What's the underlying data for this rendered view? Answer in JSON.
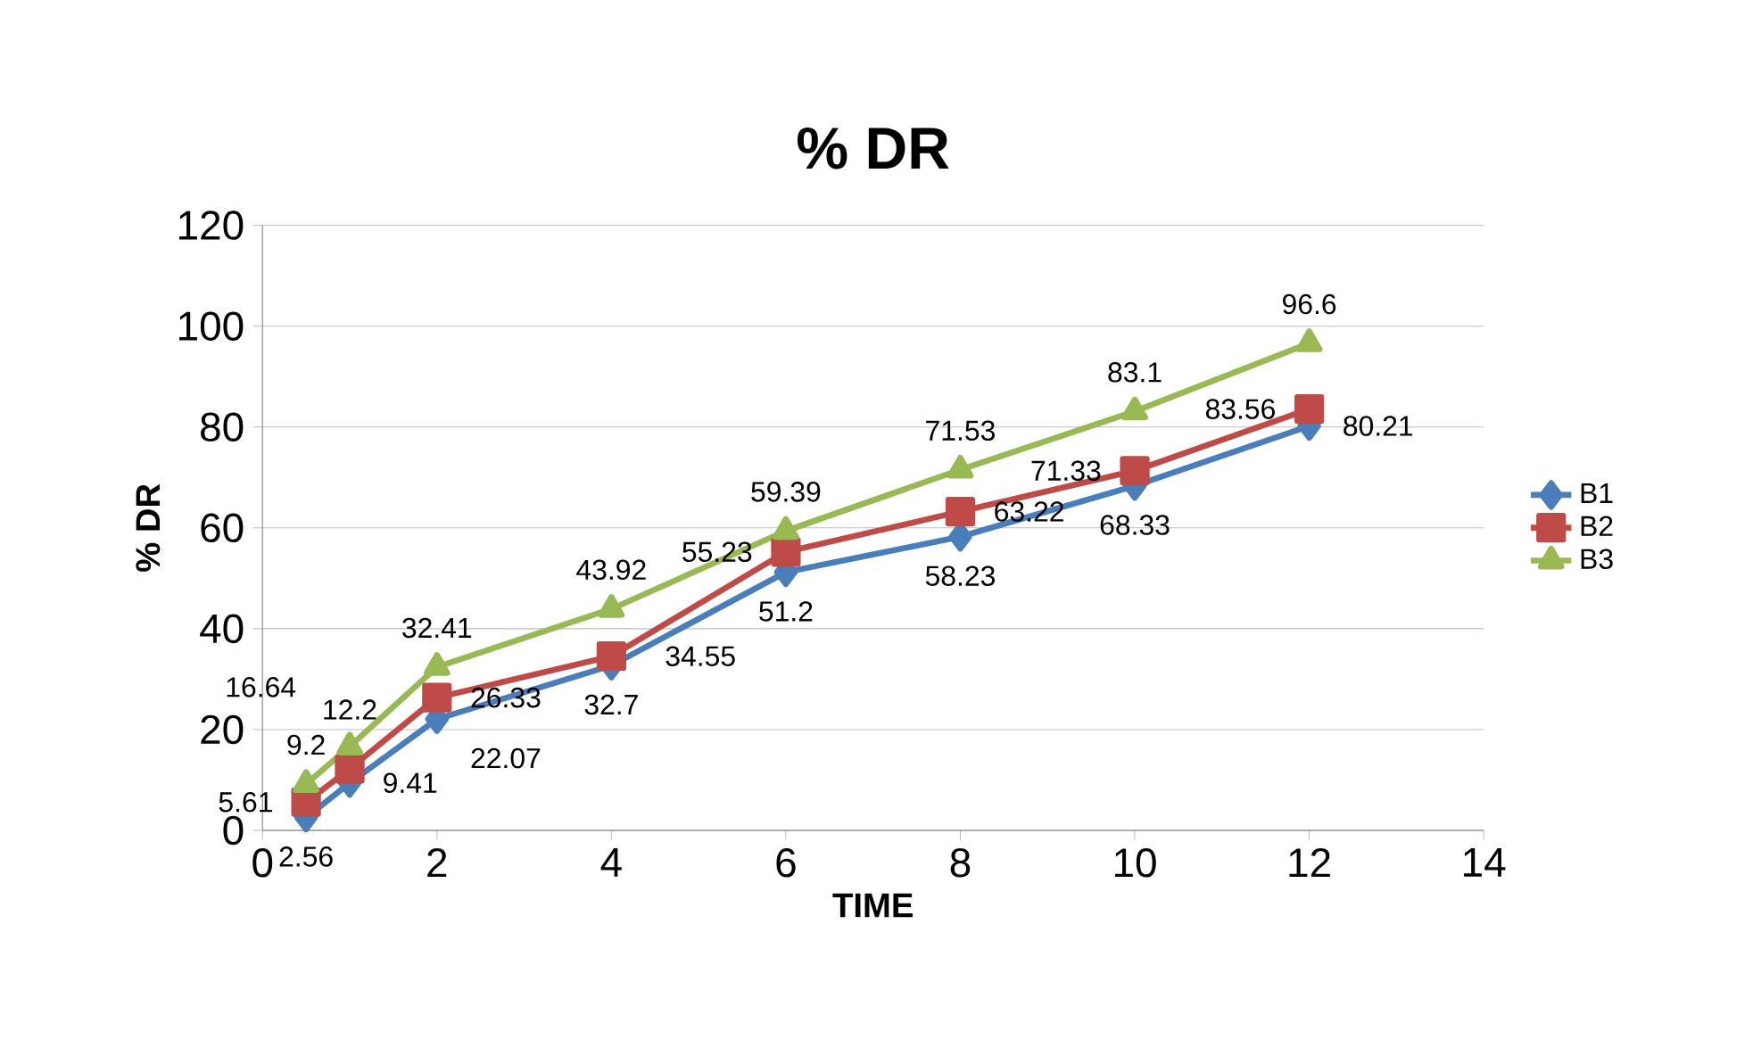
{
  "chart_data": {
    "type": "line",
    "title": "% DR",
    "xlabel": "TIME",
    "ylabel": "% DR",
    "x": [
      0.5,
      1,
      2,
      4,
      6,
      8,
      10,
      12
    ],
    "xlim": [
      0,
      14
    ],
    "xticks": [
      0,
      2,
      4,
      6,
      8,
      10,
      12,
      14
    ],
    "ylim": [
      0,
      120
    ],
    "yticks": [
      0,
      20,
      40,
      60,
      80,
      100,
      120
    ],
    "grid": "y",
    "legend": "right",
    "data_labels": true,
    "series": [
      {
        "name": "B1",
        "color": "#4a7ebb",
        "marker": "diamond",
        "values": [
          2.56,
          9.41,
          22.07,
          32.7,
          51.2,
          58.23,
          68.33,
          80.21
        ]
      },
      {
        "name": "B2",
        "color": "#be4b48",
        "marker": "square",
        "values": [
          5.61,
          12.2,
          26.33,
          34.55,
          55.23,
          63.22,
          71.33,
          83.56
        ]
      },
      {
        "name": "B3",
        "color": "#98b954",
        "marker": "triangle",
        "values": [
          9.2,
          16.64,
          32.41,
          43.92,
          59.39,
          71.53,
          83.1,
          96.6
        ]
      }
    ]
  }
}
